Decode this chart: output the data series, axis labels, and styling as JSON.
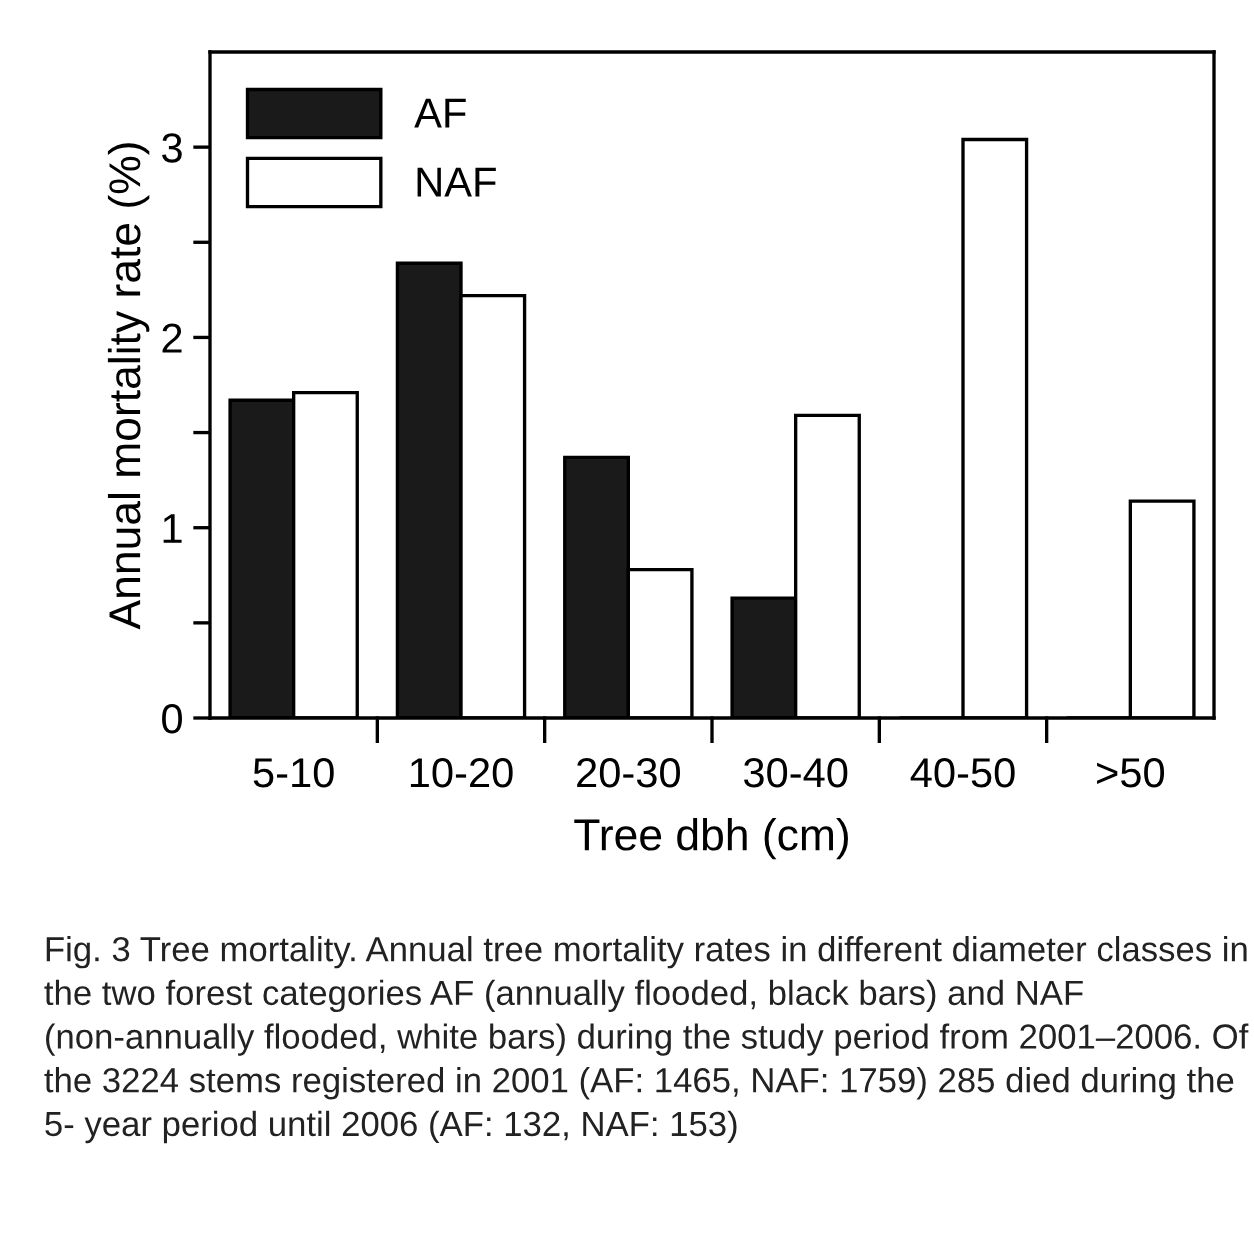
{
  "chart_data": {
    "type": "bar",
    "xlabel": "Tree dbh (cm)",
    "ylabel": "Annual mortality rate (%)",
    "categories": [
      "5-10",
      "10-20",
      "20-30",
      "30-40",
      "40-50",
      ">50"
    ],
    "series": [
      {
        "name": "AF",
        "color": "#1a1a1a",
        "values": [
          1.67,
          2.39,
          1.37,
          0.63,
          0,
          0
        ]
      },
      {
        "name": "NAF",
        "color": "#ffffff",
        "values": [
          1.71,
          2.22,
          0.78,
          1.59,
          3.04,
          1.14
        ]
      }
    ],
    "ylim": [
      0,
      3.5
    ],
    "yticks": [
      0,
      {
        "value": 0.5,
        "label": null
      },
      1,
      {
        "value": 1.5,
        "label": null
      },
      2,
      {
        "value": 2.5,
        "label": null
      },
      3
    ],
    "grid": false,
    "legend": "top left",
    "annotations": [
      "Fig. 3 Tree mortality. Annual tree mortality rates in different diameter classes in the two forest categories AF (annually flooded, black bars) and NAF (non-annually flooded, white bars) during the study period from 2001–2006. Of the 3224 stems registered in 2001 (AF: 1465, NAF: 1759) 285 died during the 5- year period until 2006 (AF: 132, NAF: 153)"
    ]
  }
}
